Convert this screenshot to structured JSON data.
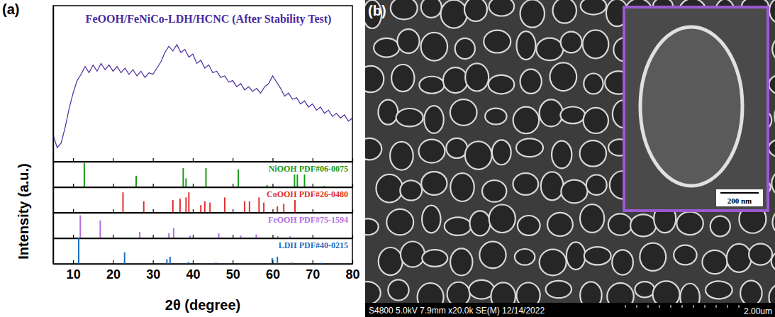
{
  "chart_data": [
    {
      "type": "line",
      "panel": "(a)",
      "title": "FeOOH/FeNiCo-LDH/HCNC (After Stability Test)",
      "y_label": "Intensity (a.u.)",
      "color": "#4b2a9e",
      "x": [
        5,
        6,
        7,
        8,
        9,
        10,
        11,
        12,
        13,
        14,
        15,
        16,
        17,
        18,
        19,
        20,
        21,
        22,
        23,
        24,
        25,
        26,
        27,
        28,
        29,
        30,
        31,
        32,
        33,
        34,
        35,
        36,
        37,
        38,
        39,
        40,
        41,
        42,
        43,
        44,
        45,
        46,
        47,
        48,
        49,
        50,
        51,
        52,
        53,
        54,
        55,
        56,
        57,
        58,
        59,
        60,
        61,
        62,
        63,
        64,
        65,
        66,
        67,
        68,
        69,
        70,
        71,
        72,
        73,
        74,
        75,
        76,
        77,
        78,
        79,
        80
      ],
      "values": [
        17,
        9,
        12,
        22,
        34,
        44,
        52,
        56,
        61,
        57,
        62,
        58,
        63,
        59,
        62,
        58,
        61,
        57,
        60,
        56,
        59,
        55,
        58,
        54,
        57,
        56,
        60,
        64,
        70,
        74,
        71,
        75,
        70,
        72,
        67,
        69,
        63,
        65,
        60,
        62,
        57,
        58,
        54,
        55,
        51,
        52,
        48,
        50,
        46,
        48,
        45,
        47,
        44,
        48,
        50,
        55,
        51,
        47,
        42,
        44,
        40,
        41,
        37,
        39,
        35,
        37,
        33,
        35,
        31,
        33,
        29,
        31,
        28,
        30,
        26,
        28
      ],
      "xlim": [
        5,
        80
      ],
      "xticks": [
        10,
        20,
        30,
        40,
        50,
        60,
        70,
        80
      ],
      "ylim": [
        0,
        100
      ],
      "yticks": [],
      "tick_labels": false
    },
    {
      "type": "stick",
      "title": "NiOOH PDF#06-0075",
      "color": "#1a9a1a",
      "x": [
        12.8,
        25.8,
        37.6,
        38.3,
        43.3,
        51.4,
        58.6,
        65.5,
        66.2,
        68.0,
        73.0
      ],
      "values": [
        95,
        45,
        75,
        35,
        75,
        70,
        8,
        55,
        60,
        55,
        5
      ],
      "xlim": [
        5,
        80
      ],
      "xticks": [
        10,
        20,
        30,
        40,
        50,
        60,
        70,
        80
      ],
      "ylim": [
        0,
        100
      ],
      "yticks": [],
      "tick_labels": false
    },
    {
      "type": "stick",
      "title": "CoOOH PDF#26-0480",
      "color": "#e03030",
      "x": [
        22.5,
        27.7,
        35.0,
        36.8,
        38.3,
        39.0,
        42.0,
        43.0,
        44.3,
        48.0,
        53.0,
        54.2,
        56.6,
        57.8,
        61.2,
        62.8,
        65.6
      ],
      "values": [
        80,
        45,
        50,
        55,
        60,
        80,
        30,
        45,
        40,
        60,
        45,
        45,
        60,
        40,
        25,
        35,
        55
      ],
      "xlim": [
        5,
        80
      ],
      "xticks": [
        10,
        20,
        30,
        40,
        50,
        60,
        70,
        80
      ],
      "ylim": [
        0,
        100
      ],
      "yticks": [],
      "tick_labels": false
    },
    {
      "type": "stick",
      "title": "FeOOH PDF#75-1594",
      "color": "#b070e0",
      "x": [
        11.8,
        16.8,
        26.7,
        34.0,
        35.2,
        39.3,
        46.5,
        52.0,
        55.9,
        61.3,
        64.4
      ],
      "values": [
        90,
        70,
        25,
        20,
        40,
        10,
        20,
        10,
        15,
        8,
        8
      ],
      "xlim": [
        5,
        80
      ],
      "xticks": [
        10,
        20,
        30,
        40,
        50,
        60,
        70,
        80
      ],
      "ylim": [
        0,
        100
      ],
      "yticks": [],
      "tick_labels": false
    },
    {
      "type": "stick",
      "title": "LDH PDF#40-0215",
      "color": "#1f6fc4",
      "x_label": "2θ (degree)",
      "x": [
        11.4,
        22.9,
        33.5,
        34.3,
        38.9,
        45.8,
        59.9,
        61.2,
        64.8,
        72.0
      ],
      "values": [
        100,
        45,
        18,
        28,
        8,
        5,
        22,
        28,
        5,
        4
      ],
      "xlim": [
        5,
        80
      ],
      "xticks": [
        10,
        20,
        30,
        40,
        50,
        60,
        70,
        80
      ],
      "ylim": [
        0,
        100
      ],
      "yticks": [],
      "tick_labels": "x"
    }
  ],
  "image_panel": {
    "panel": "(b)",
    "info_bar": "S4800 5.0kV 7.9mm x20.0k SE(M) 12/14/2022",
    "scale_bar": "2.00um",
    "inset_scale_bar": "200 nm"
  }
}
